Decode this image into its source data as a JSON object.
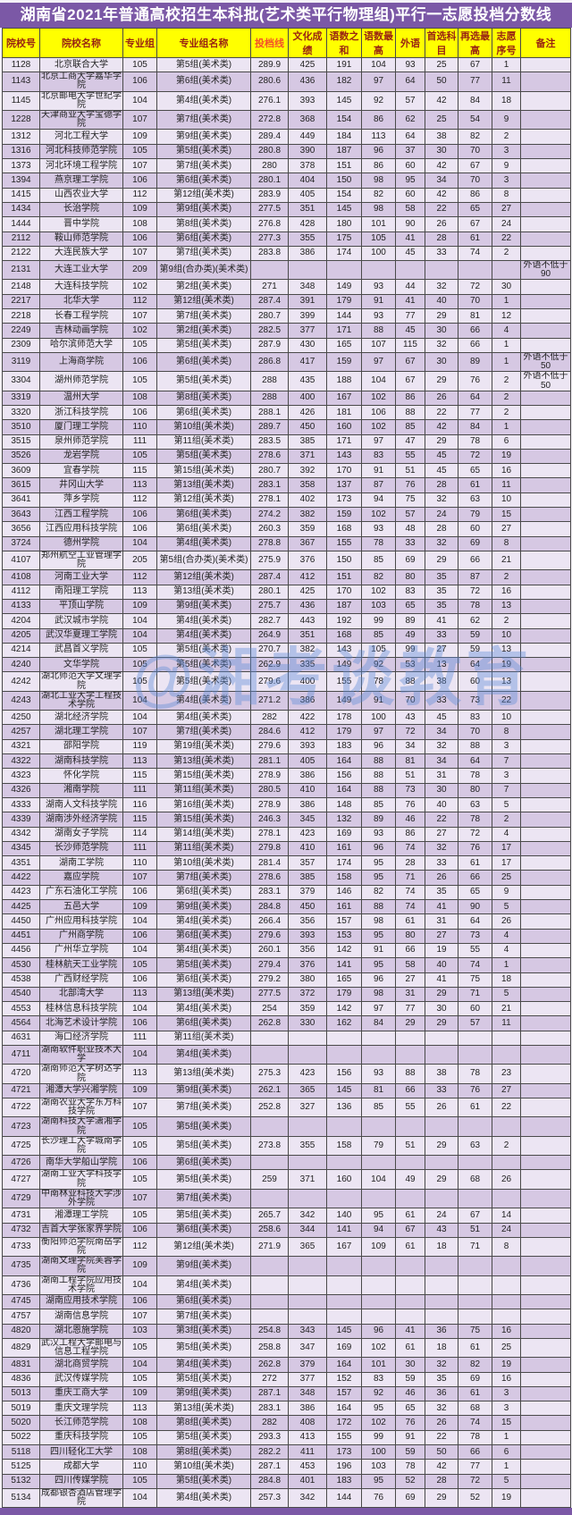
{
  "title": "湖南省2021年普通高校招生本科批(艺术类平行物理组)平行一志愿投档分数线",
  "watermark": "@湘考谈教育",
  "colors": {
    "title_bg": "#7b58a6",
    "header_bg": "#ffff00",
    "header_text": "#992412",
    "score_header_text": "#f4502a",
    "score_value_text": "#c4574e",
    "row_light": "#ece5f3",
    "row_dark": "#d6c8e3"
  },
  "columns": [
    "院校号",
    "院校名称",
    "专业组",
    "专业组名称",
    "投档线",
    "文化成绩",
    "语数之和",
    "语数最高",
    "外语",
    "首选科目",
    "再选最高",
    "志愿序号",
    "备注"
  ],
  "rows": [
    [
      "1128",
      "北京联合大学",
      "105",
      "第5组(美术类)",
      "289.9",
      "425",
      "191",
      "104",
      "93",
      "25",
      "67",
      "1",
      ""
    ],
    [
      "1143",
      "北京工商大学嘉华学院",
      "106",
      "第6组(美术类)",
      "280.6",
      "436",
      "182",
      "97",
      "64",
      "50",
      "77",
      "11",
      ""
    ],
    [
      "1145",
      "北京邮电大学世纪学院",
      "104",
      "第4组(美术类)",
      "276.1",
      "393",
      "145",
      "92",
      "57",
      "42",
      "84",
      "18",
      ""
    ],
    [
      "1228",
      "天津商业大学宝德学院",
      "107",
      "第7组(美术类)",
      "272.8",
      "368",
      "154",
      "86",
      "62",
      "25",
      "54",
      "9",
      ""
    ],
    [
      "1312",
      "河北工程大学",
      "109",
      "第9组(美术类)",
      "289.4",
      "449",
      "184",
      "113",
      "64",
      "38",
      "82",
      "2",
      ""
    ],
    [
      "1316",
      "河北科技师范学院",
      "105",
      "第5组(美术类)",
      "280.8",
      "390",
      "187",
      "96",
      "37",
      "30",
      "70",
      "3",
      ""
    ],
    [
      "1373",
      "河北环境工程学院",
      "107",
      "第7组(美术类)",
      "280",
      "378",
      "151",
      "86",
      "60",
      "42",
      "67",
      "9",
      ""
    ],
    [
      "1394",
      "燕京理工学院",
      "106",
      "第6组(美术类)",
      "280.1",
      "404",
      "150",
      "98",
      "95",
      "34",
      "70",
      "3",
      ""
    ],
    [
      "1415",
      "山西农业大学",
      "112",
      "第12组(美术类)",
      "283.9",
      "405",
      "154",
      "82",
      "60",
      "42",
      "86",
      "8",
      ""
    ],
    [
      "1434",
      "长治学院",
      "109",
      "第9组(美术类)",
      "277.5",
      "351",
      "145",
      "98",
      "58",
      "22",
      "65",
      "27",
      ""
    ],
    [
      "1444",
      "晋中学院",
      "108",
      "第8组(美术类)",
      "276.8",
      "428",
      "180",
      "101",
      "90",
      "26",
      "67",
      "24",
      ""
    ],
    [
      "2112",
      "鞍山师范学院",
      "106",
      "第6组(美术类)",
      "277.3",
      "355",
      "175",
      "105",
      "41",
      "28",
      "61",
      "22",
      ""
    ],
    [
      "2122",
      "大连民族大学",
      "107",
      "第7组(美术类)",
      "283.8",
      "386",
      "174",
      "100",
      "45",
      "33",
      "74",
      "2",
      ""
    ],
    [
      "2131",
      "大连工业大学",
      "209",
      "第9组(合办类)(美术类)",
      "",
      "",
      "",
      "",
      "",
      "",
      "",
      "",
      "外语不低于90"
    ],
    [
      "2148",
      "大连科技学院",
      "102",
      "第2组(美术类)",
      "271",
      "348",
      "149",
      "93",
      "44",
      "32",
      "72",
      "30",
      ""
    ],
    [
      "2217",
      "北华大学",
      "112",
      "第12组(美术类)",
      "287.4",
      "391",
      "179",
      "91",
      "41",
      "40",
      "70",
      "1",
      ""
    ],
    [
      "2218",
      "长春工程学院",
      "107",
      "第7组(美术类)",
      "280.7",
      "399",
      "144",
      "93",
      "77",
      "29",
      "81",
      "12",
      ""
    ],
    [
      "2249",
      "吉林动画学院",
      "102",
      "第2组(美术类)",
      "282.5",
      "377",
      "171",
      "88",
      "45",
      "30",
      "66",
      "4",
      ""
    ],
    [
      "2309",
      "哈尔滨师范大学",
      "105",
      "第5组(美术类)",
      "287.9",
      "430",
      "165",
      "107",
      "115",
      "32",
      "66",
      "1",
      ""
    ],
    [
      "3119",
      "上海商学院",
      "106",
      "第6组(美术类)",
      "286.8",
      "417",
      "159",
      "97",
      "67",
      "30",
      "89",
      "1",
      "外语不低于50"
    ],
    [
      "3304",
      "湖州师范学院",
      "105",
      "第5组(美术类)",
      "288",
      "435",
      "188",
      "104",
      "67",
      "29",
      "76",
      "2",
      "外语不低于50"
    ],
    [
      "3319",
      "温州大学",
      "108",
      "第8组(美术类)",
      "288",
      "400",
      "167",
      "102",
      "86",
      "26",
      "64",
      "2",
      ""
    ],
    [
      "3320",
      "浙江科技学院",
      "106",
      "第6组(美术类)",
      "288.1",
      "426",
      "181",
      "106",
      "88",
      "22",
      "77",
      "2",
      ""
    ],
    [
      "3510",
      "厦门理工学院",
      "110",
      "第10组(美术类)",
      "289.7",
      "450",
      "160",
      "102",
      "85",
      "42",
      "84",
      "1",
      ""
    ],
    [
      "3515",
      "泉州师范学院",
      "111",
      "第11组(美术类)",
      "283.5",
      "385",
      "171",
      "97",
      "47",
      "29",
      "78",
      "6",
      ""
    ],
    [
      "3526",
      "龙岩学院",
      "105",
      "第5组(美术类)",
      "278.6",
      "371",
      "143",
      "83",
      "55",
      "45",
      "72",
      "19",
      ""
    ],
    [
      "3609",
      "宜春学院",
      "115",
      "第15组(美术类)",
      "280.7",
      "392",
      "170",
      "91",
      "51",
      "45",
      "65",
      "16",
      ""
    ],
    [
      "3615",
      "井冈山大学",
      "113",
      "第13组(美术类)",
      "283.1",
      "358",
      "137",
      "87",
      "76",
      "28",
      "61",
      "11",
      ""
    ],
    [
      "3641",
      "萍乡学院",
      "112",
      "第12组(美术类)",
      "278.1",
      "402",
      "173",
      "94",
      "75",
      "32",
      "63",
      "10",
      ""
    ],
    [
      "3643",
      "江西工程学院",
      "106",
      "第6组(美术类)",
      "274.2",
      "382",
      "159",
      "102",
      "57",
      "24",
      "79",
      "15",
      ""
    ],
    [
      "3656",
      "江西应用科技学院",
      "106",
      "第6组(美术类)",
      "260.3",
      "359",
      "168",
      "93",
      "48",
      "28",
      "60",
      "27",
      ""
    ],
    [
      "3724",
      "德州学院",
      "104",
      "第4组(美术类)",
      "278.8",
      "367",
      "155",
      "78",
      "33",
      "32",
      "69",
      "8",
      ""
    ],
    [
      "4107",
      "郑州航空工业管理学院",
      "205",
      "第5组(合办类)(美术类)",
      "275.9",
      "376",
      "150",
      "85",
      "69",
      "29",
      "66",
      "21",
      ""
    ],
    [
      "4108",
      "河南工业大学",
      "112",
      "第12组(美术类)",
      "287.4",
      "412",
      "151",
      "82",
      "80",
      "35",
      "87",
      "2",
      ""
    ],
    [
      "4112",
      "南阳理工学院",
      "113",
      "第13组(美术类)",
      "280.1",
      "425",
      "170",
      "102",
      "83",
      "35",
      "72",
      "16",
      ""
    ],
    [
      "4133",
      "平顶山学院",
      "109",
      "第9组(美术类)",
      "275.7",
      "436",
      "187",
      "103",
      "65",
      "35",
      "78",
      "13",
      ""
    ],
    [
      "4204",
      "武汉城市学院",
      "104",
      "第4组(美术类)",
      "282.7",
      "443",
      "192",
      "99",
      "89",
      "41",
      "62",
      "2",
      ""
    ],
    [
      "4205",
      "武汉华夏理工学院",
      "104",
      "第4组(美术类)",
      "264.9",
      "351",
      "168",
      "85",
      "49",
      "33",
      "59",
      "10",
      ""
    ],
    [
      "4214",
      "武昌首义学院",
      "105",
      "第5组(美术类)",
      "270.7",
      "382",
      "143",
      "105",
      "99",
      "27",
      "59",
      "13",
      ""
    ],
    [
      "4240",
      "文华学院",
      "105",
      "第5组(美术类)",
      "262.9",
      "335",
      "149",
      "92",
      "53",
      "13",
      "64",
      "19",
      ""
    ],
    [
      "4242",
      "湖北师范大学文理学院",
      "105",
      "第5组(美术类)",
      "279.6",
      "400",
      "155",
      "78",
      "88",
      "38",
      "60",
      "13",
      ""
    ],
    [
      "4243",
      "湖北工业大学工程技术学院",
      "104",
      "第4组(美术类)",
      "271.2",
      "386",
      "149",
      "91",
      "70",
      "33",
      "73",
      "22",
      ""
    ],
    [
      "4250",
      "湖北经济学院",
      "104",
      "第4组(美术类)",
      "282",
      "422",
      "178",
      "100",
      "43",
      "45",
      "83",
      "10",
      ""
    ],
    [
      "4257",
      "湖北理工学院",
      "107",
      "第7组(美术类)",
      "284.6",
      "412",
      "179",
      "97",
      "72",
      "34",
      "70",
      "8",
      ""
    ],
    [
      "4321",
      "邵阳学院",
      "119",
      "第19组(美术类)",
      "279.6",
      "393",
      "183",
      "96",
      "34",
      "32",
      "88",
      "3",
      ""
    ],
    [
      "4322",
      "湖南科技学院",
      "113",
      "第13组(美术类)",
      "281.1",
      "405",
      "164",
      "88",
      "81",
      "34",
      "64",
      "7",
      ""
    ],
    [
      "4323",
      "怀化学院",
      "115",
      "第15组(美术类)",
      "278.9",
      "386",
      "156",
      "88",
      "51",
      "31",
      "78",
      "3",
      ""
    ],
    [
      "4326",
      "湘南学院",
      "111",
      "第11组(美术类)",
      "280.5",
      "410",
      "164",
      "88",
      "73",
      "30",
      "80",
      "7",
      ""
    ],
    [
      "4333",
      "湖南人文科技学院",
      "116",
      "第16组(美术类)",
      "278.9",
      "386",
      "148",
      "85",
      "76",
      "40",
      "63",
      "5",
      ""
    ],
    [
      "4339",
      "湖南涉外经济学院",
      "115",
      "第15组(美术类)",
      "246.3",
      "345",
      "132",
      "89",
      "46",
      "22",
      "78",
      "2",
      ""
    ],
    [
      "4342",
      "湖南女子学院",
      "114",
      "第14组(美术类)",
      "278.1",
      "423",
      "169",
      "93",
      "86",
      "27",
      "72",
      "4",
      ""
    ],
    [
      "4345",
      "长沙师范学院",
      "111",
      "第11组(美术类)",
      "279.8",
      "410",
      "161",
      "96",
      "74",
      "32",
      "76",
      "17",
      ""
    ],
    [
      "4351",
      "湖南工学院",
      "110",
      "第10组(美术类)",
      "281.4",
      "357",
      "174",
      "95",
      "28",
      "33",
      "61",
      "17",
      ""
    ],
    [
      "4422",
      "嘉应学院",
      "107",
      "第7组(美术类)",
      "278.6",
      "385",
      "158",
      "95",
      "71",
      "26",
      "66",
      "25",
      ""
    ],
    [
      "4423",
      "广东石油化工学院",
      "106",
      "第6组(美术类)",
      "283.1",
      "379",
      "146",
      "82",
      "74",
      "35",
      "65",
      "9",
      ""
    ],
    [
      "4425",
      "五邑大学",
      "109",
      "第9组(美术类)",
      "284.8",
      "450",
      "161",
      "88",
      "74",
      "41",
      "90",
      "5",
      ""
    ],
    [
      "4450",
      "广州应用科技学院",
      "104",
      "第4组(美术类)",
      "266.4",
      "356",
      "157",
      "98",
      "61",
      "31",
      "64",
      "26",
      ""
    ],
    [
      "4451",
      "广州商学院",
      "106",
      "第6组(美术类)",
      "279.6",
      "393",
      "153",
      "95",
      "80",
      "27",
      "73",
      "4",
      ""
    ],
    [
      "4456",
      "广州华立学院",
      "104",
      "第4组(美术类)",
      "260.1",
      "356",
      "142",
      "91",
      "66",
      "19",
      "55",
      "4",
      ""
    ],
    [
      "4530",
      "桂林航天工业学院",
      "105",
      "第5组(美术类)",
      "279.4",
      "376",
      "141",
      "95",
      "58",
      "40",
      "74",
      "1",
      ""
    ],
    [
      "4538",
      "广西财经学院",
      "106",
      "第6组(美术类)",
      "279.2",
      "380",
      "165",
      "96",
      "27",
      "41",
      "75",
      "18",
      ""
    ],
    [
      "4540",
      "北部湾大学",
      "113",
      "第13组(美术类)",
      "277.5",
      "372",
      "179",
      "98",
      "31",
      "29",
      "71",
      "5",
      ""
    ],
    [
      "4553",
      "桂林信息科技学院",
      "104",
      "第4组(美术类)",
      "254",
      "359",
      "142",
      "97",
      "77",
      "30",
      "60",
      "21",
      ""
    ],
    [
      "4564",
      "北海艺术设计学院",
      "106",
      "第6组(美术类)",
      "262.8",
      "330",
      "162",
      "84",
      "29",
      "29",
      "57",
      "11",
      ""
    ],
    [
      "4631",
      "海口经济学院",
      "111",
      "第11组(美术类)",
      "",
      "",
      "",
      "",
      "",
      "",
      "",
      "",
      ""
    ],
    [
      "4711",
      "湖南软件职业技术大学",
      "104",
      "第4组(美术类)",
      "",
      "",
      "",
      "",
      "",
      "",
      "",
      "",
      ""
    ],
    [
      "4720",
      "湖南师范大学树达学院",
      "113",
      "第13组(美术类)",
      "275.3",
      "423",
      "156",
      "93",
      "88",
      "38",
      "78",
      "23",
      ""
    ],
    [
      "4721",
      "湘潭大学兴湘学院",
      "109",
      "第9组(美术类)",
      "262.1",
      "365",
      "145",
      "81",
      "66",
      "33",
      "76",
      "27",
      ""
    ],
    [
      "4722",
      "湖南农业大学东方科技学院",
      "107",
      "第7组(美术类)",
      "252.8",
      "327",
      "136",
      "85",
      "55",
      "26",
      "61",
      "22",
      ""
    ],
    [
      "4723",
      "湖南科技大学潇湘学院",
      "105",
      "第5组(美术类)",
      "",
      "",
      "",
      "",
      "",
      "",
      "",
      "",
      ""
    ],
    [
      "4725",
      "长沙理工大学城南学院",
      "105",
      "第5组(美术类)",
      "273.8",
      "355",
      "158",
      "79",
      "51",
      "29",
      "63",
      "2",
      ""
    ],
    [
      "4726",
      "南华大学船山学院",
      "106",
      "第6组(美术类)",
      "",
      "",
      "",
      "",
      "",
      "",
      "",
      "",
      ""
    ],
    [
      "4727",
      "湖南工业大学科技学院",
      "105",
      "第5组(美术类)",
      "259",
      "371",
      "160",
      "104",
      "49",
      "29",
      "68",
      "26",
      ""
    ],
    [
      "4729",
      "中南林业科技大学涉外学院",
      "107",
      "第7组(美术类)",
      "",
      "",
      "",
      "",
      "",
      "",
      "",
      "",
      ""
    ],
    [
      "4731",
      "湘潭理工学院",
      "105",
      "第5组(美术类)",
      "265.7",
      "342",
      "140",
      "95",
      "61",
      "24",
      "67",
      "14",
      ""
    ],
    [
      "4732",
      "吉首大学张家界学院",
      "106",
      "第6组(美术类)",
      "258.6",
      "344",
      "141",
      "94",
      "67",
      "43",
      "51",
      "24",
      ""
    ],
    [
      "4733",
      "衡阳师范学院南岳学院",
      "112",
      "第12组(美术类)",
      "271.9",
      "365",
      "167",
      "109",
      "61",
      "18",
      "71",
      "8",
      ""
    ],
    [
      "4735",
      "湖南文理学院芙蓉学院",
      "109",
      "第9组(美术类)",
      "",
      "",
      "",
      "",
      "",
      "",
      "",
      "",
      ""
    ],
    [
      "4736",
      "湖南工程学院应用技术学院",
      "104",
      "第4组(美术类)",
      "",
      "",
      "",
      "",
      "",
      "",
      "",
      "",
      ""
    ],
    [
      "4745",
      "湖南应用技术学院",
      "106",
      "第6组(美术类)",
      "",
      "",
      "",
      "",
      "",
      "",
      "",
      "",
      ""
    ],
    [
      "4757",
      "湖南信息学院",
      "107",
      "第7组(美术类)",
      "",
      "",
      "",
      "",
      "",
      "",
      "",
      "",
      ""
    ],
    [
      "4820",
      "湖北恩施学院",
      "103",
      "第3组(美术类)",
      "254.8",
      "343",
      "145",
      "96",
      "41",
      "36",
      "75",
      "16",
      ""
    ],
    [
      "4829",
      "武汉工程大学邮电与信息工程学院",
      "105",
      "第5组(美术类)",
      "258.8",
      "347",
      "169",
      "102",
      "61",
      "18",
      "61",
      "25",
      ""
    ],
    [
      "4831",
      "湖北商贸学院",
      "104",
      "第4组(美术类)",
      "262.8",
      "379",
      "164",
      "101",
      "30",
      "32",
      "82",
      "19",
      ""
    ],
    [
      "4836",
      "武汉传媒学院",
      "105",
      "第5组(美术类)",
      "272",
      "377",
      "152",
      "83",
      "59",
      "35",
      "69",
      "16",
      ""
    ],
    [
      "5013",
      "重庆工商大学",
      "109",
      "第9组(美术类)",
      "287.1",
      "348",
      "157",
      "92",
      "46",
      "36",
      "61",
      "3",
      ""
    ],
    [
      "5019",
      "重庆文理学院",
      "113",
      "第13组(美术类)",
      "283.1",
      "386",
      "164",
      "95",
      "65",
      "32",
      "68",
      "3",
      ""
    ],
    [
      "5020",
      "长江师范学院",
      "108",
      "第8组(美术类)",
      "282",
      "408",
      "172",
      "102",
      "76",
      "26",
      "74",
      "15",
      ""
    ],
    [
      "5022",
      "重庆科技学院",
      "105",
      "第5组(美术类)",
      "293.3",
      "413",
      "155",
      "99",
      "91",
      "22",
      "78",
      "1",
      ""
    ],
    [
      "5118",
      "四川轻化工大学",
      "108",
      "第8组(美术类)",
      "282.2",
      "411",
      "173",
      "100",
      "59",
      "50",
      "66",
      "6",
      ""
    ],
    [
      "5125",
      "成都大学",
      "110",
      "第10组(美术类)",
      "287.1",
      "453",
      "196",
      "103",
      "78",
      "42",
      "77",
      "1",
      ""
    ],
    [
      "5132",
      "四川传媒学院",
      "105",
      "第5组(美术类)",
      "284.8",
      "401",
      "183",
      "95",
      "52",
      "28",
      "72",
      "5",
      ""
    ],
    [
      "5134",
      "成都银杏酒店管理学院",
      "104",
      "第4组(美术类)",
      "257.3",
      "342",
      "144",
      "76",
      "69",
      "29",
      "52",
      "19",
      ""
    ]
  ]
}
